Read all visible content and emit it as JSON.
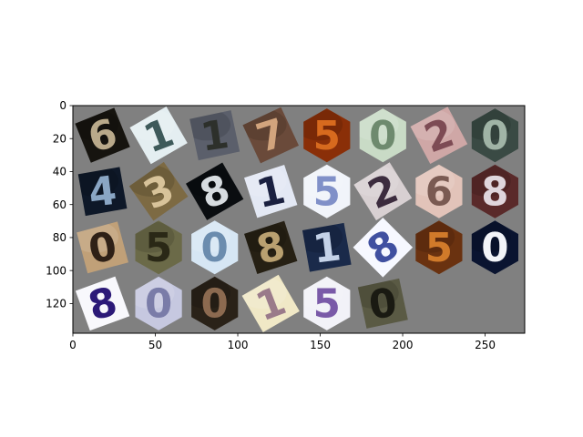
{
  "chart_data": {
    "type": "image-grid",
    "title": "",
    "xlabel": "",
    "ylabel": "",
    "background": "#808080",
    "xlim": [
      0,
      274
    ],
    "ylim": [
      138,
      0
    ],
    "image_width": 274,
    "image_height": 138,
    "xticks": [
      0,
      50,
      100,
      150,
      200,
      250
    ],
    "yticks": [
      0,
      20,
      40,
      60,
      80,
      100,
      120
    ],
    "grid_rows": 4,
    "grid_cols": 8,
    "tile_size": 32,
    "padding": 2,
    "tiles": [
      {
        "row": 0,
        "col": 0,
        "shape": "rot",
        "bg": "#16140f",
        "fg": "#b9a98a",
        "glyph": "6",
        "rot": -22,
        "bright": false
      },
      {
        "row": 0,
        "col": 1,
        "shape": "rot",
        "bg": "#e4eef1",
        "fg": "#3e5a5a",
        "glyph": "1",
        "rot": -30,
        "bright": true
      },
      {
        "row": 0,
        "col": 2,
        "shape": "rot",
        "bg": "#5b5f6b",
        "fg": "#2d302b",
        "glyph": "1",
        "rot": -12,
        "bright": false
      },
      {
        "row": 0,
        "col": 3,
        "shape": "rot",
        "bg": "#6a4a3a",
        "fg": "#d2a47d",
        "glyph": "7",
        "rot": -25,
        "bright": false
      },
      {
        "row": 0,
        "col": 4,
        "shape": "hex",
        "bg": "#8a2f08",
        "fg": "#d76a1e",
        "glyph": "5",
        "rot": 0,
        "bright": false
      },
      {
        "row": 0,
        "col": 5,
        "shape": "hex",
        "bg": "#c9dbc6",
        "fg": "#6e8a6e",
        "glyph": "0",
        "rot": 0,
        "bright": true
      },
      {
        "row": 0,
        "col": 6,
        "shape": "rot",
        "bg": "#cfa7a6",
        "fg": "#7d4b54",
        "glyph": "2",
        "rot": -28,
        "bright": true
      },
      {
        "row": 0,
        "col": 7,
        "shape": "hex",
        "bg": "#3a4a44",
        "fg": "#a0b4a6",
        "glyph": "0",
        "rot": 0,
        "bright": false
      },
      {
        "row": 1,
        "col": 0,
        "shape": "rot",
        "bg": "#0e1828",
        "fg": "#8aa6c4",
        "glyph": "4",
        "rot": -10,
        "bright": false
      },
      {
        "row": 1,
        "col": 1,
        "shape": "rot",
        "bg": "#7d6a43",
        "fg": "#d8c39a",
        "glyph": "3",
        "rot": -35,
        "bright": false
      },
      {
        "row": 1,
        "col": 2,
        "shape": "rot",
        "bg": "#0a0d10",
        "fg": "#d7dce0",
        "glyph": "8",
        "rot": -30,
        "bright": false
      },
      {
        "row": 1,
        "col": 3,
        "shape": "rot",
        "bg": "#e3e8f4",
        "fg": "#1a2040",
        "glyph": "1",
        "rot": -18,
        "bright": true
      },
      {
        "row": 1,
        "col": 4,
        "shape": "hex",
        "bg": "#f1f4fa",
        "fg": "#8090c8",
        "glyph": "5",
        "rot": 0,
        "bright": true
      },
      {
        "row": 1,
        "col": 5,
        "shape": "rot",
        "bg": "#d8d0d2",
        "fg": "#3c2c3e",
        "glyph": "2",
        "rot": -32,
        "bright": true
      },
      {
        "row": 1,
        "col": 6,
        "shape": "hex",
        "bg": "#e2c3b9",
        "fg": "#7a5a52",
        "glyph": "6",
        "rot": 0,
        "bright": true
      },
      {
        "row": 1,
        "col": 7,
        "shape": "hex",
        "bg": "#5a2a2a",
        "fg": "#e0d6dc",
        "glyph": "8",
        "rot": 0,
        "bright": false
      },
      {
        "row": 2,
        "col": 0,
        "shape": "rot",
        "bg": "#c0a078",
        "fg": "#2e2016",
        "glyph": "0",
        "rot": -15,
        "bright": true
      },
      {
        "row": 2,
        "col": 1,
        "shape": "hex",
        "bg": "#6b6a48",
        "fg": "#2a2816",
        "glyph": "5",
        "rot": 0,
        "bright": false
      },
      {
        "row": 2,
        "col": 2,
        "shape": "hex",
        "bg": "#d6e6f4",
        "fg": "#6b8cae",
        "glyph": "0",
        "rot": 0,
        "bright": true
      },
      {
        "row": 2,
        "col": 3,
        "shape": "rot",
        "bg": "#262014",
        "fg": "#b9a070",
        "glyph": "8",
        "rot": -18,
        "bright": false
      },
      {
        "row": 2,
        "col": 4,
        "shape": "rot",
        "bg": "#1a2a4a",
        "fg": "#c4d2e8",
        "glyph": "1",
        "rot": -10,
        "bright": false
      },
      {
        "row": 2,
        "col": 5,
        "shape": "rot",
        "bg": "#f6f8ff",
        "fg": "#4050a0",
        "glyph": "8",
        "rot": -45,
        "bright": true
      },
      {
        "row": 2,
        "col": 6,
        "shape": "hex",
        "bg": "#6a3210",
        "fg": "#d07a2a",
        "glyph": "5",
        "rot": 0,
        "bright": false
      },
      {
        "row": 2,
        "col": 7,
        "shape": "hex",
        "bg": "#0a1430",
        "fg": "#f2f4f8",
        "glyph": "0",
        "rot": 0,
        "bright": false
      },
      {
        "row": 3,
        "col": 0,
        "shape": "rot",
        "bg": "#f8f8fc",
        "fg": "#2c1a78",
        "glyph": "8",
        "rot": -20,
        "bright": true
      },
      {
        "row": 3,
        "col": 1,
        "shape": "hex",
        "bg": "#c6c8e0",
        "fg": "#7a7ca8",
        "glyph": "0",
        "rot": 0,
        "bright": true
      },
      {
        "row": 3,
        "col": 2,
        "shape": "hex",
        "bg": "#2a2218",
        "fg": "#8c6a50",
        "glyph": "0",
        "rot": 0,
        "bright": false
      },
      {
        "row": 3,
        "col": 3,
        "shape": "rot",
        "bg": "#f0e8c6",
        "fg": "#9a7a8a",
        "glyph": "1",
        "rot": -30,
        "bright": true
      },
      {
        "row": 3,
        "col": 4,
        "shape": "hex",
        "bg": "#f2f2f8",
        "fg": "#7a5aa8",
        "glyph": "5",
        "rot": 0,
        "bright": true
      },
      {
        "row": 3,
        "col": 5,
        "shape": "rot",
        "bg": "#5a5a44",
        "fg": "#1a1a12",
        "glyph": "0",
        "rot": -12,
        "bright": false
      }
    ]
  }
}
